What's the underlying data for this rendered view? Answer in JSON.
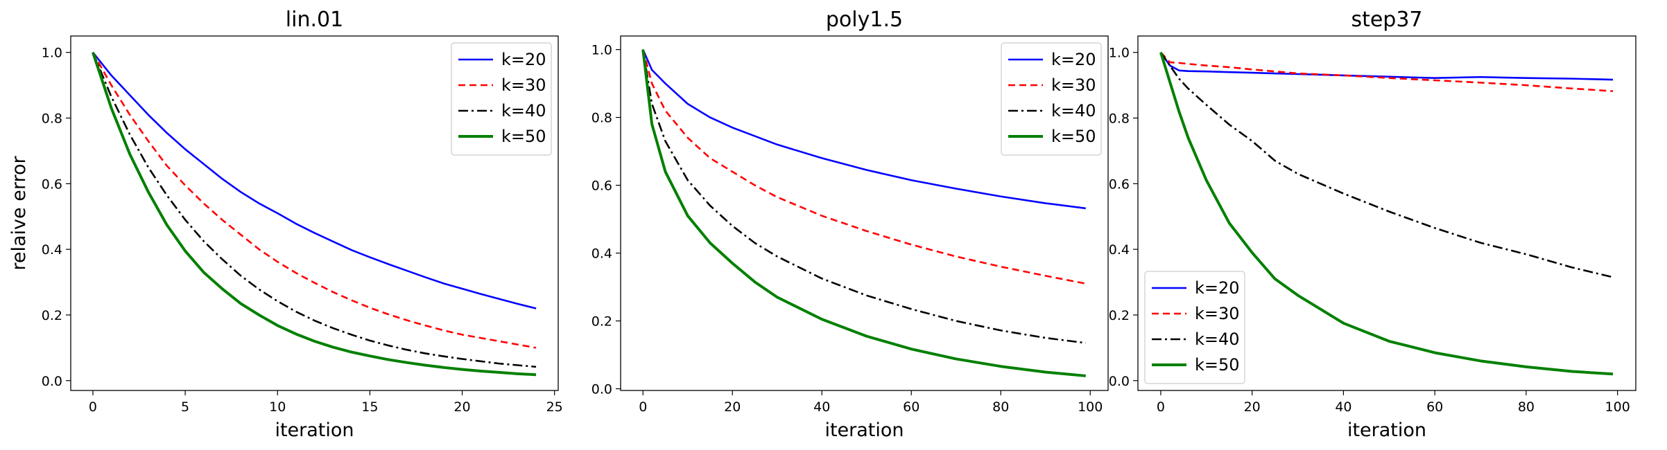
{
  "chart_data": [
    {
      "type": "line",
      "title": "lin.01",
      "xlabel": "iteration",
      "ylabel": "relaive error",
      "xlim": [
        -1.2,
        25.2
      ],
      "ylim": [
        -0.03,
        1.05
      ],
      "xticks": [
        0,
        5,
        10,
        15,
        20,
        25
      ],
      "yticks": [
        0.0,
        0.2,
        0.4,
        0.6,
        0.8,
        1.0
      ],
      "legend_position": "upper right",
      "x": [
        0,
        1,
        2,
        3,
        4,
        5,
        6,
        7,
        8,
        9,
        10,
        11,
        12,
        13,
        14,
        15,
        16,
        17,
        18,
        19,
        20,
        21,
        22,
        23,
        24
      ],
      "series": [
        {
          "name": "k=20",
          "color": "#0000ff",
          "style": "solid",
          "values": [
            1.0,
            0.93,
            0.87,
            0.81,
            0.755,
            0.705,
            0.66,
            0.615,
            0.575,
            0.54,
            0.51,
            0.478,
            0.45,
            0.424,
            0.398,
            0.376,
            0.355,
            0.335,
            0.315,
            0.296,
            0.28,
            0.264,
            0.249,
            0.234,
            0.22
          ]
        },
        {
          "name": "k=30",
          "color": "#ff0000",
          "style": "dashed",
          "values": [
            1.0,
            0.9,
            0.81,
            0.73,
            0.655,
            0.595,
            0.54,
            0.49,
            0.445,
            0.4,
            0.362,
            0.328,
            0.298,
            0.27,
            0.245,
            0.222,
            0.202,
            0.184,
            0.168,
            0.153,
            0.14,
            0.13,
            0.12,
            0.11,
            0.1
          ]
        },
        {
          "name": "k=40",
          "color": "#000000",
          "style": "dashdot",
          "values": [
            1.0,
            0.865,
            0.75,
            0.65,
            0.565,
            0.49,
            0.425,
            0.37,
            0.32,
            0.278,
            0.242,
            0.21,
            0.183,
            0.16,
            0.14,
            0.122,
            0.107,
            0.094,
            0.083,
            0.074,
            0.066,
            0.059,
            0.052,
            0.047,
            0.042
          ]
        },
        {
          "name": "k=50",
          "color": "#008000",
          "style": "solid-thick",
          "values": [
            1.0,
            0.83,
            0.69,
            0.575,
            0.475,
            0.395,
            0.33,
            0.28,
            0.235,
            0.2,
            0.168,
            0.142,
            0.12,
            0.102,
            0.087,
            0.075,
            0.064,
            0.055,
            0.047,
            0.04,
            0.034,
            0.029,
            0.025,
            0.021,
            0.018
          ]
        }
      ]
    },
    {
      "type": "line",
      "title": "poly1.5",
      "xlabel": "iteration",
      "ylabel": "",
      "xlim": [
        -5,
        104
      ],
      "ylim": [
        -0.005,
        1.04
      ],
      "xticks": [
        0,
        20,
        40,
        60,
        80,
        100
      ],
      "yticks": [
        0.0,
        0.2,
        0.4,
        0.6,
        0.8,
        1.0
      ],
      "legend_position": "upper right",
      "x": [
        0,
        2,
        5,
        10,
        15,
        20,
        25,
        30,
        40,
        50,
        60,
        70,
        80,
        90,
        99
      ],
      "series": [
        {
          "name": "k=20",
          "color": "#0000ff",
          "style": "solid",
          "values": [
            1.0,
            0.94,
            0.9,
            0.84,
            0.8,
            0.77,
            0.745,
            0.72,
            0.68,
            0.645,
            0.615,
            0.59,
            0.567,
            0.547,
            0.532
          ]
        },
        {
          "name": "k=30",
          "color": "#ff0000",
          "style": "dashed",
          "values": [
            1.0,
            0.9,
            0.82,
            0.74,
            0.68,
            0.64,
            0.6,
            0.565,
            0.51,
            0.465,
            0.425,
            0.39,
            0.36,
            0.333,
            0.31
          ]
        },
        {
          "name": "k=40",
          "color": "#000000",
          "style": "dashdot",
          "values": [
            1.0,
            0.84,
            0.73,
            0.615,
            0.54,
            0.48,
            0.43,
            0.39,
            0.325,
            0.275,
            0.235,
            0.2,
            0.172,
            0.15,
            0.135
          ]
        },
        {
          "name": "k=50",
          "color": "#008000",
          "style": "solid-thick",
          "values": [
            1.0,
            0.78,
            0.64,
            0.51,
            0.43,
            0.37,
            0.315,
            0.27,
            0.205,
            0.155,
            0.117,
            0.088,
            0.066,
            0.049,
            0.038
          ]
        }
      ]
    },
    {
      "type": "line",
      "title": "step37",
      "xlabel": "iteration",
      "ylabel": "",
      "xlim": [
        -5,
        104
      ],
      "ylim": [
        -0.03,
        1.05
      ],
      "xticks": [
        0,
        20,
        40,
        60,
        80,
        100
      ],
      "yticks": [
        0.0,
        0.2,
        0.4,
        0.6,
        0.8,
        1.0
      ],
      "legend_position": "lower left",
      "x": [
        0,
        2,
        4,
        6,
        10,
        15,
        20,
        25,
        30,
        40,
        50,
        60,
        70,
        80,
        90,
        99
      ],
      "series": [
        {
          "name": "k=20",
          "color": "#0000ff",
          "style": "solid",
          "values": [
            1.0,
            0.96,
            0.945,
            0.943,
            0.942,
            0.94,
            0.938,
            0.936,
            0.934,
            0.93,
            0.926,
            0.922,
            0.925,
            0.922,
            0.92,
            0.917
          ]
        },
        {
          "name": "k=30",
          "color": "#ff0000",
          "style": "dashed",
          "values": [
            1.0,
            0.97,
            0.968,
            0.965,
            0.96,
            0.955,
            0.948,
            0.942,
            0.936,
            0.93,
            0.922,
            0.915,
            0.908,
            0.9,
            0.89,
            0.882
          ]
        },
        {
          "name": "k=40",
          "color": "#000000",
          "style": "dashdot",
          "values": [
            1.0,
            0.96,
            0.92,
            0.89,
            0.84,
            0.78,
            0.73,
            0.67,
            0.63,
            0.57,
            0.515,
            0.465,
            0.42,
            0.385,
            0.345,
            0.315
          ]
        },
        {
          "name": "k=50",
          "color": "#008000",
          "style": "solid-thick",
          "values": [
            1.0,
            0.91,
            0.82,
            0.74,
            0.61,
            0.48,
            0.39,
            0.31,
            0.26,
            0.175,
            0.12,
            0.085,
            0.06,
            0.042,
            0.028,
            0.02
          ]
        }
      ]
    }
  ]
}
